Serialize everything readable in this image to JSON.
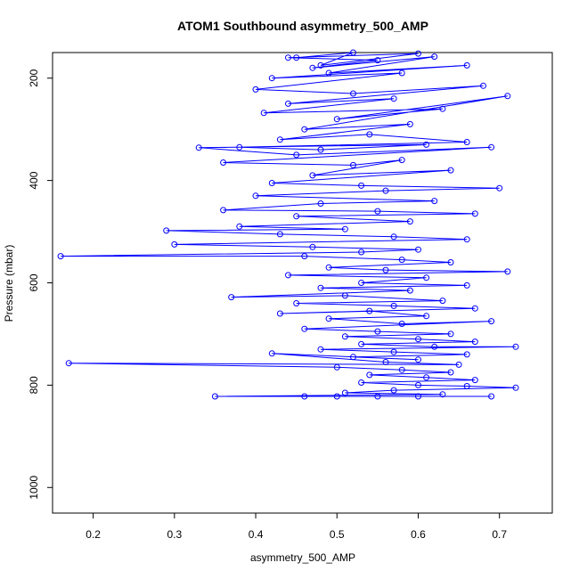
{
  "chart_data": {
    "type": "scatter",
    "title": "ATOM1 Southbound asymmetry_500_AMP",
    "xlabel": "asymmetry_500_AMP",
    "ylabel": "Pressure (mbar)",
    "xlim": [
      0.15,
      0.765
    ],
    "ylim": [
      1050,
      150
    ],
    "y_reversed": true,
    "x_ticks": [
      "0.2",
      "0.3",
      "0.4",
      "0.5",
      "0.6",
      "0.7"
    ],
    "y_ticks": [
      "200",
      "400",
      "600",
      "800",
      "1000"
    ],
    "grid": false,
    "color": "#0000ff",
    "style": "points connected by lines (type='o')",
    "series": [
      {
        "points": [
          [
            0.45,
            160
          ],
          [
            0.52,
            150
          ],
          [
            0.48,
            175
          ],
          [
            0.6,
            152
          ],
          [
            0.44,
            160
          ],
          [
            0.55,
            165
          ],
          [
            0.47,
            180
          ],
          [
            0.62,
            158
          ],
          [
            0.49,
            190
          ],
          [
            0.66,
            175
          ],
          [
            0.42,
            200
          ],
          [
            0.58,
            190
          ],
          [
            0.4,
            222
          ],
          [
            0.52,
            230
          ],
          [
            0.68,
            215
          ],
          [
            0.44,
            250
          ],
          [
            0.57,
            240
          ],
          [
            0.41,
            268
          ],
          [
            0.63,
            260
          ],
          [
            0.5,
            280
          ],
          [
            0.71,
            235
          ],
          [
            0.46,
            300
          ],
          [
            0.59,
            290
          ],
          [
            0.43,
            320
          ],
          [
            0.54,
            310
          ],
          [
            0.66,
            325
          ],
          [
            0.38,
            335
          ],
          [
            0.48,
            340
          ],
          [
            0.61,
            330
          ],
          [
            0.33,
            336
          ],
          [
            0.45,
            350
          ],
          [
            0.69,
            335
          ],
          [
            0.36,
            365
          ],
          [
            0.52,
            370
          ],
          [
            0.58,
            360
          ],
          [
            0.47,
            390
          ],
          [
            0.64,
            380
          ],
          [
            0.42,
            405
          ],
          [
            0.53,
            410
          ],
          [
            0.7,
            415
          ],
          [
            0.56,
            420
          ],
          [
            0.4,
            430
          ],
          [
            0.62,
            440
          ],
          [
            0.48,
            445
          ],
          [
            0.36,
            458
          ],
          [
            0.55,
            460
          ],
          [
            0.67,
            465
          ],
          [
            0.45,
            470
          ],
          [
            0.59,
            480
          ],
          [
            0.38,
            490
          ],
          [
            0.51,
            495
          ],
          [
            0.29,
            498
          ],
          [
            0.43,
            505
          ],
          [
            0.57,
            510
          ],
          [
            0.66,
            515
          ],
          [
            0.3,
            525
          ],
          [
            0.47,
            530
          ],
          [
            0.6,
            535
          ],
          [
            0.53,
            540
          ],
          [
            0.16,
            548
          ],
          [
            0.46,
            548
          ],
          [
            0.58,
            555
          ],
          [
            0.64,
            560
          ],
          [
            0.49,
            570
          ],
          [
            0.56,
            575
          ],
          [
            0.71,
            578
          ],
          [
            0.44,
            585
          ],
          [
            0.61,
            590
          ],
          [
            0.53,
            600
          ],
          [
            0.66,
            605
          ],
          [
            0.48,
            610
          ],
          [
            0.59,
            615
          ],
          [
            0.37,
            628
          ],
          [
            0.51,
            625
          ],
          [
            0.63,
            635
          ],
          [
            0.45,
            640
          ],
          [
            0.57,
            645
          ],
          [
            0.67,
            650
          ],
          [
            0.43,
            660
          ],
          [
            0.54,
            655
          ],
          [
            0.61,
            665
          ],
          [
            0.49,
            670
          ],
          [
            0.58,
            680
          ],
          [
            0.69,
            675
          ],
          [
            0.46,
            690
          ],
          [
            0.55,
            695
          ],
          [
            0.64,
            700
          ],
          [
            0.51,
            705
          ],
          [
            0.6,
            710
          ],
          [
            0.67,
            715
          ],
          [
            0.53,
            720
          ],
          [
            0.62,
            725
          ],
          [
            0.72,
            725
          ],
          [
            0.48,
            730
          ],
          [
            0.57,
            735
          ],
          [
            0.66,
            740
          ],
          [
            0.52,
            745
          ],
          [
            0.6,
            750
          ],
          [
            0.42,
            738
          ],
          [
            0.56,
            755
          ],
          [
            0.65,
            760
          ],
          [
            0.17,
            757
          ],
          [
            0.5,
            765
          ],
          [
            0.58,
            770
          ],
          [
            0.64,
            775
          ],
          [
            0.54,
            780
          ],
          [
            0.61,
            785
          ],
          [
            0.67,
            790
          ],
          [
            0.53,
            795
          ],
          [
            0.6,
            800
          ],
          [
            0.66,
            802
          ],
          [
            0.72,
            805
          ],
          [
            0.57,
            810
          ],
          [
            0.51,
            815
          ],
          [
            0.63,
            818
          ],
          [
            0.35,
            822
          ],
          [
            0.46,
            822
          ],
          [
            0.5,
            822
          ],
          [
            0.55,
            822
          ],
          [
            0.6,
            822
          ],
          [
            0.69,
            822
          ]
        ]
      }
    ]
  }
}
